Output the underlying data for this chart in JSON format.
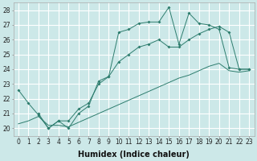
{
  "line_jagged": {
    "x": [
      0,
      1,
      2,
      3,
      4,
      5,
      6,
      7,
      8,
      9,
      10,
      11,
      12,
      13,
      14,
      15,
      16,
      17,
      18,
      19,
      20,
      21,
      22,
      23
    ],
    "y": [
      22.6,
      21.7,
      20.9,
      20.0,
      20.5,
      20.0,
      21.0,
      21.5,
      23.2,
      23.5,
      26.5,
      26.7,
      27.1,
      27.2,
      27.2,
      28.2,
      25.7,
      27.8,
      27.1,
      27.0,
      26.7,
      24.1,
      24.0,
      24.0
    ]
  },
  "line_upper": {
    "x": [
      2,
      3,
      4,
      5,
      6,
      7,
      8,
      9,
      10,
      11,
      12,
      13,
      14,
      15,
      16,
      17,
      18,
      19,
      20,
      21,
      22,
      23
    ],
    "y": [
      21.0,
      20.0,
      20.5,
      20.5,
      21.3,
      21.7,
      23.0,
      23.5,
      24.5,
      25.0,
      25.5,
      25.7,
      26.0,
      25.5,
      25.5,
      26.0,
      26.4,
      26.7,
      26.9,
      26.5,
      24.0,
      24.0
    ]
  },
  "line_lower": {
    "x": [
      0,
      1,
      2,
      3,
      4,
      5,
      6,
      7,
      8,
      9,
      10,
      11,
      12,
      13,
      14,
      15,
      16,
      17,
      18,
      19,
      20,
      21,
      22,
      23
    ],
    "y": [
      20.3,
      20.5,
      20.8,
      20.2,
      20.2,
      20.1,
      20.4,
      20.7,
      21.0,
      21.3,
      21.6,
      21.9,
      22.2,
      22.5,
      22.8,
      23.1,
      23.4,
      23.6,
      23.9,
      24.2,
      24.4,
      23.9,
      23.8,
      23.9
    ]
  },
  "color": "#2e7d6e",
  "bg_color": "#cce8e8",
  "grid_color": "#ffffff",
  "xlabel": "Humidex (Indice chaleur)",
  "xlim": [
    -0.5,
    23.5
  ],
  "ylim": [
    19.5,
    28.5
  ],
  "yticks": [
    20,
    21,
    22,
    23,
    24,
    25,
    26,
    27,
    28
  ],
  "xticks": [
    0,
    1,
    2,
    3,
    4,
    5,
    6,
    7,
    8,
    9,
    10,
    11,
    12,
    13,
    14,
    15,
    16,
    17,
    18,
    19,
    20,
    21,
    22,
    23
  ],
  "tick_fontsize": 5.5,
  "xlabel_fontsize": 7.0
}
